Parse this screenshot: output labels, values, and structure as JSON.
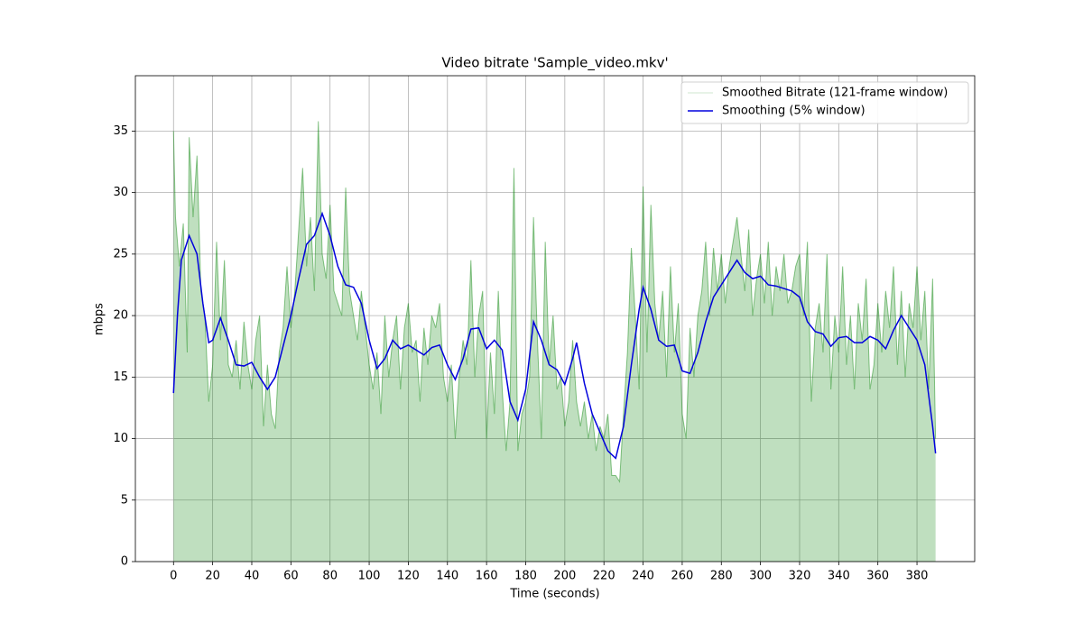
{
  "chart_data": {
    "type": "line",
    "title": "Video bitrate 'Sample_video.mkv'",
    "xlabel": "Time (seconds)",
    "ylabel": "mbps",
    "xlim": [
      -19.5,
      409.5
    ],
    "ylim": [
      0,
      39.5
    ],
    "xticks": [
      0,
      20,
      40,
      60,
      80,
      100,
      120,
      140,
      160,
      180,
      200,
      220,
      240,
      260,
      280,
      300,
      320,
      340,
      360,
      380
    ],
    "yticks": [
      0,
      5,
      10,
      15,
      20,
      25,
      30,
      35
    ],
    "grid": true,
    "legend": "upper right",
    "series": [
      {
        "name": "Smoothed Bitrate (121-frame window)",
        "color": "#008000",
        "area": true,
        "x": [
          0,
          1,
          3,
          5,
          7,
          8,
          10,
          12,
          14,
          16,
          18,
          20,
          22,
          24,
          26,
          28,
          30,
          32,
          34,
          36,
          38,
          40,
          42,
          44,
          46,
          48,
          50,
          52,
          54,
          56,
          58,
          60,
          62,
          64,
          66,
          68,
          70,
          72,
          74,
          76,
          78,
          80,
          82,
          84,
          86,
          88,
          90,
          92,
          94,
          96,
          98,
          100,
          102,
          104,
          106,
          108,
          110,
          112,
          114,
          116,
          118,
          120,
          122,
          124,
          126,
          128,
          130,
          132,
          134,
          136,
          138,
          140,
          142,
          144,
          146,
          148,
          150,
          152,
          154,
          156,
          158,
          160,
          162,
          164,
          166,
          168,
          170,
          172,
          174,
          176,
          178,
          180,
          182,
          184,
          186,
          188,
          190,
          192,
          194,
          196,
          198,
          200,
          202,
          204,
          206,
          208,
          210,
          212,
          214,
          216,
          218,
          220,
          222,
          224,
          226,
          228,
          230,
          232,
          234,
          236,
          238,
          240,
          242,
          244,
          246,
          248,
          250,
          252,
          254,
          256,
          258,
          260,
          262,
          264,
          266,
          268,
          270,
          272,
          274,
          276,
          278,
          280,
          282,
          284,
          286,
          288,
          290,
          292,
          294,
          296,
          298,
          300,
          302,
          304,
          306,
          308,
          310,
          312,
          314,
          316,
          318,
          320,
          322,
          324,
          326,
          328,
          330,
          332,
          334,
          336,
          338,
          340,
          342,
          344,
          346,
          348,
          350,
          352,
          354,
          356,
          358,
          360,
          362,
          364,
          366,
          368,
          370,
          372,
          374,
          376,
          378,
          380,
          382,
          384,
          386,
          388,
          389.5
        ],
        "values": [
          35,
          28,
          24,
          27.5,
          17,
          34.5,
          28,
          33,
          22,
          20,
          13,
          16,
          26,
          18,
          24.5,
          16,
          15,
          18,
          14,
          19.5,
          16,
          14,
          18,
          20,
          11,
          16,
          12,
          10.8,
          17,
          19,
          24,
          19,
          22,
          27,
          32,
          24,
          28,
          22,
          35.8,
          25,
          23,
          29,
          22,
          21,
          20,
          30.4,
          22,
          20,
          18,
          22,
          19,
          16,
          14,
          17,
          12,
          20,
          15,
          18,
          20,
          14,
          19,
          21,
          17,
          18,
          13,
          19,
          16,
          20,
          19,
          21,
          15,
          13,
          16,
          10,
          15,
          18,
          16,
          24.5,
          15,
          20,
          22,
          10,
          17,
          12,
          22,
          14,
          9,
          13,
          32,
          9,
          12,
          13,
          15,
          28,
          18,
          10,
          26,
          16,
          20,
          14,
          15,
          11,
          13,
          18,
          13,
          11,
          13,
          10,
          12,
          9,
          11,
          10,
          12,
          7,
          7,
          6.5,
          12,
          17,
          25.5,
          20,
          14,
          30.5,
          17,
          29,
          21,
          18,
          22,
          15,
          24,
          17,
          21,
          12,
          10,
          19,
          15,
          20,
          22,
          26,
          20,
          25.5,
          22,
          25,
          21,
          24,
          26,
          28,
          25,
          22,
          27,
          20,
          23,
          25,
          21,
          26,
          20,
          24,
          22,
          25,
          21,
          22,
          24,
          25,
          20,
          26,
          13,
          19,
          21,
          17,
          25,
          14,
          20,
          17,
          24,
          16,
          20,
          14,
          21,
          18,
          23,
          14,
          16,
          21,
          17,
          22,
          19,
          24,
          16,
          22,
          15,
          21,
          19,
          24,
          18,
          22,
          14,
          23,
          10
        ]
      },
      {
        "name": "Smoothing (5% window)",
        "color": "#0000dd",
        "x": [
          0,
          2,
          4,
          8,
          12,
          15,
          18,
          20,
          24,
          28,
          32,
          36,
          40,
          44,
          48,
          52,
          56,
          60,
          64,
          68,
          72,
          76,
          80,
          84,
          88,
          92,
          96,
          100,
          104,
          108,
          112,
          116,
          120,
          124,
          128,
          132,
          136,
          140,
          144,
          148,
          152,
          156,
          160,
          164,
          168,
          172,
          176,
          180,
          184,
          188,
          192,
          196,
          200,
          204,
          206,
          210,
          214,
          218,
          222,
          226,
          230,
          234,
          238,
          240,
          244,
          248,
          252,
          256,
          260,
          264,
          268,
          272,
          276,
          280,
          284,
          288,
          292,
          296,
          300,
          304,
          308,
          312,
          316,
          320,
          324,
          328,
          332,
          336,
          340,
          344,
          348,
          352,
          356,
          360,
          364,
          368,
          372,
          376,
          380,
          384,
          388,
          389.5
        ],
        "values": [
          13.7,
          20,
          24.5,
          26.5,
          25,
          21,
          17.8,
          18,
          19.8,
          18,
          16,
          15.9,
          16.2,
          15,
          14,
          15,
          17.5,
          20,
          23,
          25.8,
          26.5,
          28.3,
          26.5,
          24,
          22.5,
          22.3,
          21,
          18,
          15.7,
          16.5,
          18,
          17.3,
          17.6,
          17.2,
          16.8,
          17.4,
          17.6,
          16,
          14.8,
          16.5,
          18.9,
          19,
          17.3,
          18,
          17.2,
          13,
          11.5,
          14,
          19.5,
          18,
          16,
          15.6,
          14.4,
          16.5,
          17.8,
          14.5,
          12,
          10.5,
          9,
          8.4,
          11,
          16,
          20.5,
          22.3,
          20.5,
          18,
          17.5,
          17.6,
          15.5,
          15.3,
          17,
          19.5,
          21.5,
          22.5,
          23.5,
          24.5,
          23.5,
          23,
          23.2,
          22.5,
          22.4,
          22.2,
          22,
          21.5,
          19.5,
          18.7,
          18.5,
          17.5,
          18.2,
          18.3,
          17.8,
          17.8,
          18.3,
          18,
          17.3,
          18.8,
          20,
          19,
          18,
          16,
          11,
          8.8
        ]
      }
    ]
  }
}
